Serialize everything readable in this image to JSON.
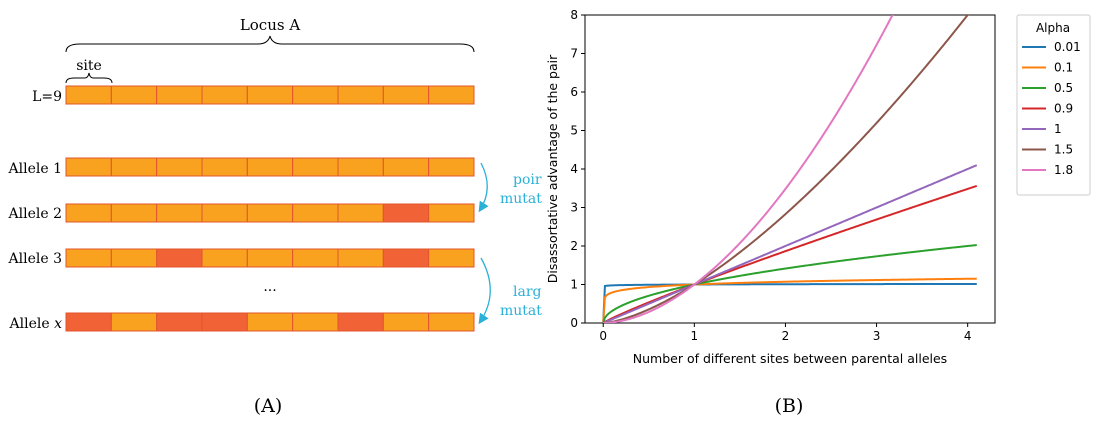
{
  "panel_a": {
    "caption": "(A)",
    "locus_label": "Locus A",
    "site_label": "site",
    "sites_per_row": 9,
    "colors": {
      "normal": "#f9a21f",
      "mutated": "#f26237",
      "border": "#e0552d",
      "arrow": "#2bb0d8"
    },
    "rows": [
      {
        "label": "L=9",
        "mutated": []
      },
      {
        "label": "Allele 1",
        "mutated": []
      },
      {
        "label": "Allele 2",
        "mutated": [
          7
        ]
      },
      {
        "label": "Allele 3",
        "mutated": [
          2,
          7
        ]
      },
      {
        "label": "Allele x",
        "label_main": "Allele ",
        "label_var": "x",
        "mutated": [
          0,
          2,
          3,
          6
        ]
      }
    ],
    "ellipsis": "...",
    "arrow_labels": {
      "point": [
        "poir",
        "mutat"
      ],
      "large": [
        "larg",
        "mutat"
      ]
    }
  },
  "panel_b": {
    "caption": "(B)",
    "chart_data": {
      "type": "line",
      "xlabel": "Number of different sites between parental alleles",
      "ylabel": "Disassortative advantage of the pair",
      "xlim": [
        -0.2,
        4.3
      ],
      "ylim": [
        0,
        8
      ],
      "xticks": [
        0,
        1,
        2,
        3,
        4
      ],
      "yticks": [
        0,
        1,
        2,
        3,
        4,
        5,
        6,
        7,
        8
      ],
      "x_range": [
        0,
        4.1
      ],
      "legend": {
        "title": "Alpha",
        "position": "outside-right"
      },
      "series": [
        {
          "name": "0.01",
          "alpha": 0.01,
          "color": "#1f77b4"
        },
        {
          "name": "0.1",
          "alpha": 0.1,
          "color": "#ff7f0e"
        },
        {
          "name": "0.5",
          "alpha": 0.5,
          "color": "#2ca02c"
        },
        {
          "name": "0.9",
          "alpha": 0.9,
          "color": "#d62728"
        },
        {
          "name": "1",
          "alpha": 1.0,
          "color": "#9467bd"
        },
        {
          "name": "1.5",
          "alpha": 1.5,
          "color": "#8c564b"
        },
        {
          "name": "1.8",
          "alpha": 1.8,
          "color": "#e377c2"
        }
      ]
    }
  }
}
